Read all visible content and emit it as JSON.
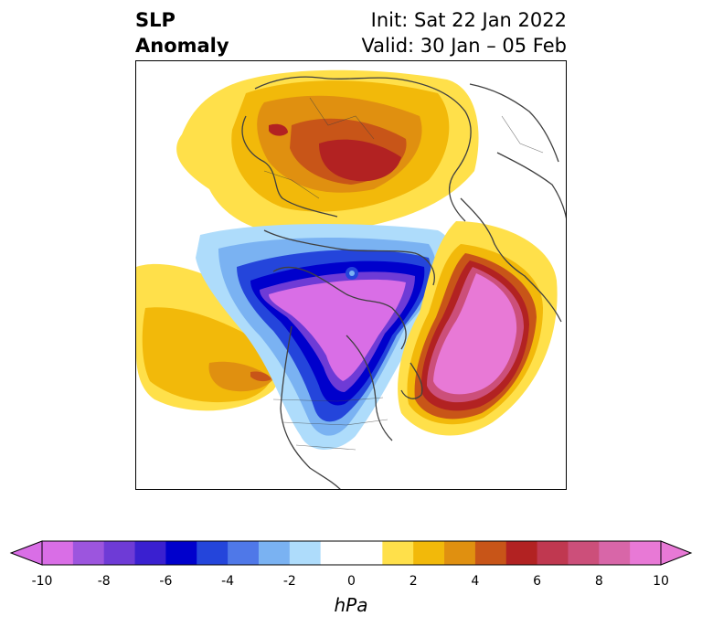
{
  "header": {
    "title_line1": "SLP",
    "title_line2": "Anomaly",
    "init": "Init: Sat 22 Jan 2022",
    "valid": "Valid: 30 Jan – 05 Feb"
  },
  "colorbar": {
    "unit": "hPa",
    "ticks": [
      "-10",
      "-8",
      "-6",
      "-4",
      "-2",
      "0",
      "2",
      "4",
      "6",
      "8",
      "10"
    ],
    "colors": [
      "#d96ee6",
      "#9c55de",
      "#6e3bd6",
      "#3a20d0",
      "#0000cc",
      "#2445db",
      "#4f78e8",
      "#7ab2f2",
      "#aedcfb",
      "#ffffff",
      "#ffffff",
      "#ffe04a",
      "#f2b90a",
      "#e09010",
      "#c85518",
      "#b22222",
      "#c03850",
      "#cc4f7a",
      "#d866a8",
      "#e879d6"
    ]
  },
  "map": {
    "description_colors": {
      "negative_core": "#d96ee6",
      "positive_core": "#e879d6",
      "coast": "#404040"
    }
  }
}
